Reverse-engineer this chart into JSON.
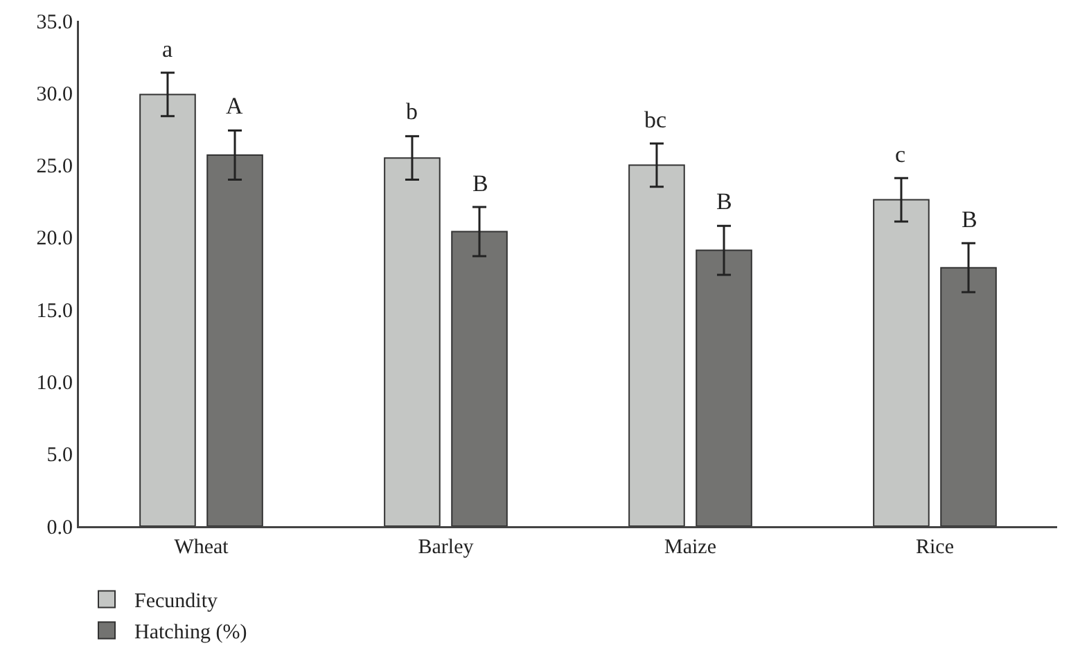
{
  "chart_data": {
    "type": "bar",
    "categories": [
      "Wheat",
      "Barley",
      "Maize",
      "Rice"
    ],
    "series": [
      {
        "name": "Fecundity",
        "color": "#c4c6c4",
        "values": [
          29.9,
          25.5,
          25.0,
          22.6
        ],
        "errors": [
          1.5,
          1.5,
          1.5,
          1.5
        ],
        "value_labels": [
          "a",
          "b",
          "bc",
          "c"
        ]
      },
      {
        "name": "Hatching (%)",
        "color": "#737371",
        "values": [
          25.7,
          20.4,
          19.1,
          17.9
        ],
        "errors": [
          1.7,
          1.7,
          1.7,
          1.7
        ],
        "value_labels": [
          "A",
          "B",
          "B",
          "B"
        ]
      }
    ],
    "ylim": [
      0,
      35
    ],
    "yticks": [
      {
        "value": 0,
        "label": "0.0"
      },
      {
        "value": 5,
        "label": "5.0"
      },
      {
        "value": 10,
        "label": "10.0"
      },
      {
        "value": 15,
        "label": "15.0"
      },
      {
        "value": 20,
        "label": "20.0"
      },
      {
        "value": 25,
        "label": "25.0"
      },
      {
        "value": 30,
        "label": "30.0"
      },
      {
        "value": 35,
        "label": "35.0"
      }
    ],
    "grid": false,
    "legend": "bottom left"
  }
}
